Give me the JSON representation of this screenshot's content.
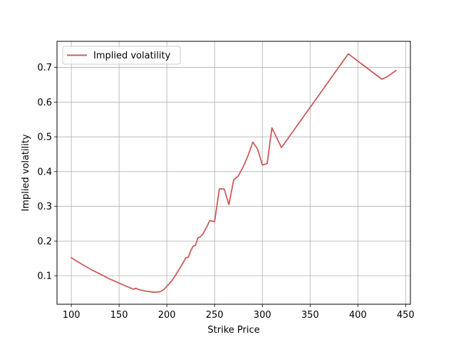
{
  "chart_data": {
    "type": "line",
    "xlabel": "Strike Price",
    "ylabel": "Implied volatility",
    "xlim": [
      85,
      455
    ],
    "ylim": [
      0.018,
      0.775
    ],
    "xticks": [
      100,
      150,
      200,
      250,
      300,
      350,
      400,
      450
    ],
    "yticks": [
      0.1,
      0.2,
      0.3,
      0.4,
      0.5,
      0.6,
      0.7
    ],
    "grid": true,
    "legend_position": "upper-left",
    "series": [
      {
        "name": "Implied volatility",
        "color": "#cd5c5c",
        "x": [
          100,
          105,
          110,
          115,
          120,
          125,
          130,
          135,
          140,
          145,
          150,
          155,
          160,
          165,
          167.5,
          170,
          172.5,
          175,
          177.5,
          180,
          182.5,
          185,
          187.5,
          190,
          192.5,
          195,
          197.5,
          200,
          202.5,
          205,
          207.5,
          210,
          212.5,
          215,
          217.5,
          220,
          222.5,
          225,
          227.5,
          230,
          232.5,
          235,
          237.5,
          240,
          242.5,
          245,
          250,
          255,
          260,
          265,
          270,
          275,
          280,
          285,
          290,
          295,
          300,
          305,
          310,
          320,
          390,
          425,
          430,
          440
        ],
        "values": [
          0.152,
          0.143,
          0.135,
          0.127,
          0.119,
          0.112,
          0.105,
          0.098,
          0.091,
          0.085,
          0.079,
          0.073,
          0.067,
          0.061,
          0.064,
          0.061,
          0.059,
          0.058,
          0.056,
          0.055,
          0.054,
          0.053,
          0.053,
          0.053,
          0.054,
          0.057,
          0.062,
          0.07,
          0.077,
          0.085,
          0.095,
          0.106,
          0.117,
          0.128,
          0.14,
          0.152,
          0.153,
          0.172,
          0.185,
          0.188,
          0.209,
          0.212,
          0.219,
          0.232,
          0.245,
          0.259,
          0.256,
          0.35,
          0.35,
          0.305,
          0.376,
          0.388,
          0.414,
          0.446,
          0.485,
          0.465,
          0.419,
          0.423,
          0.526,
          0.469,
          0.739,
          0.666,
          0.672,
          0.691
        ]
      }
    ]
  }
}
